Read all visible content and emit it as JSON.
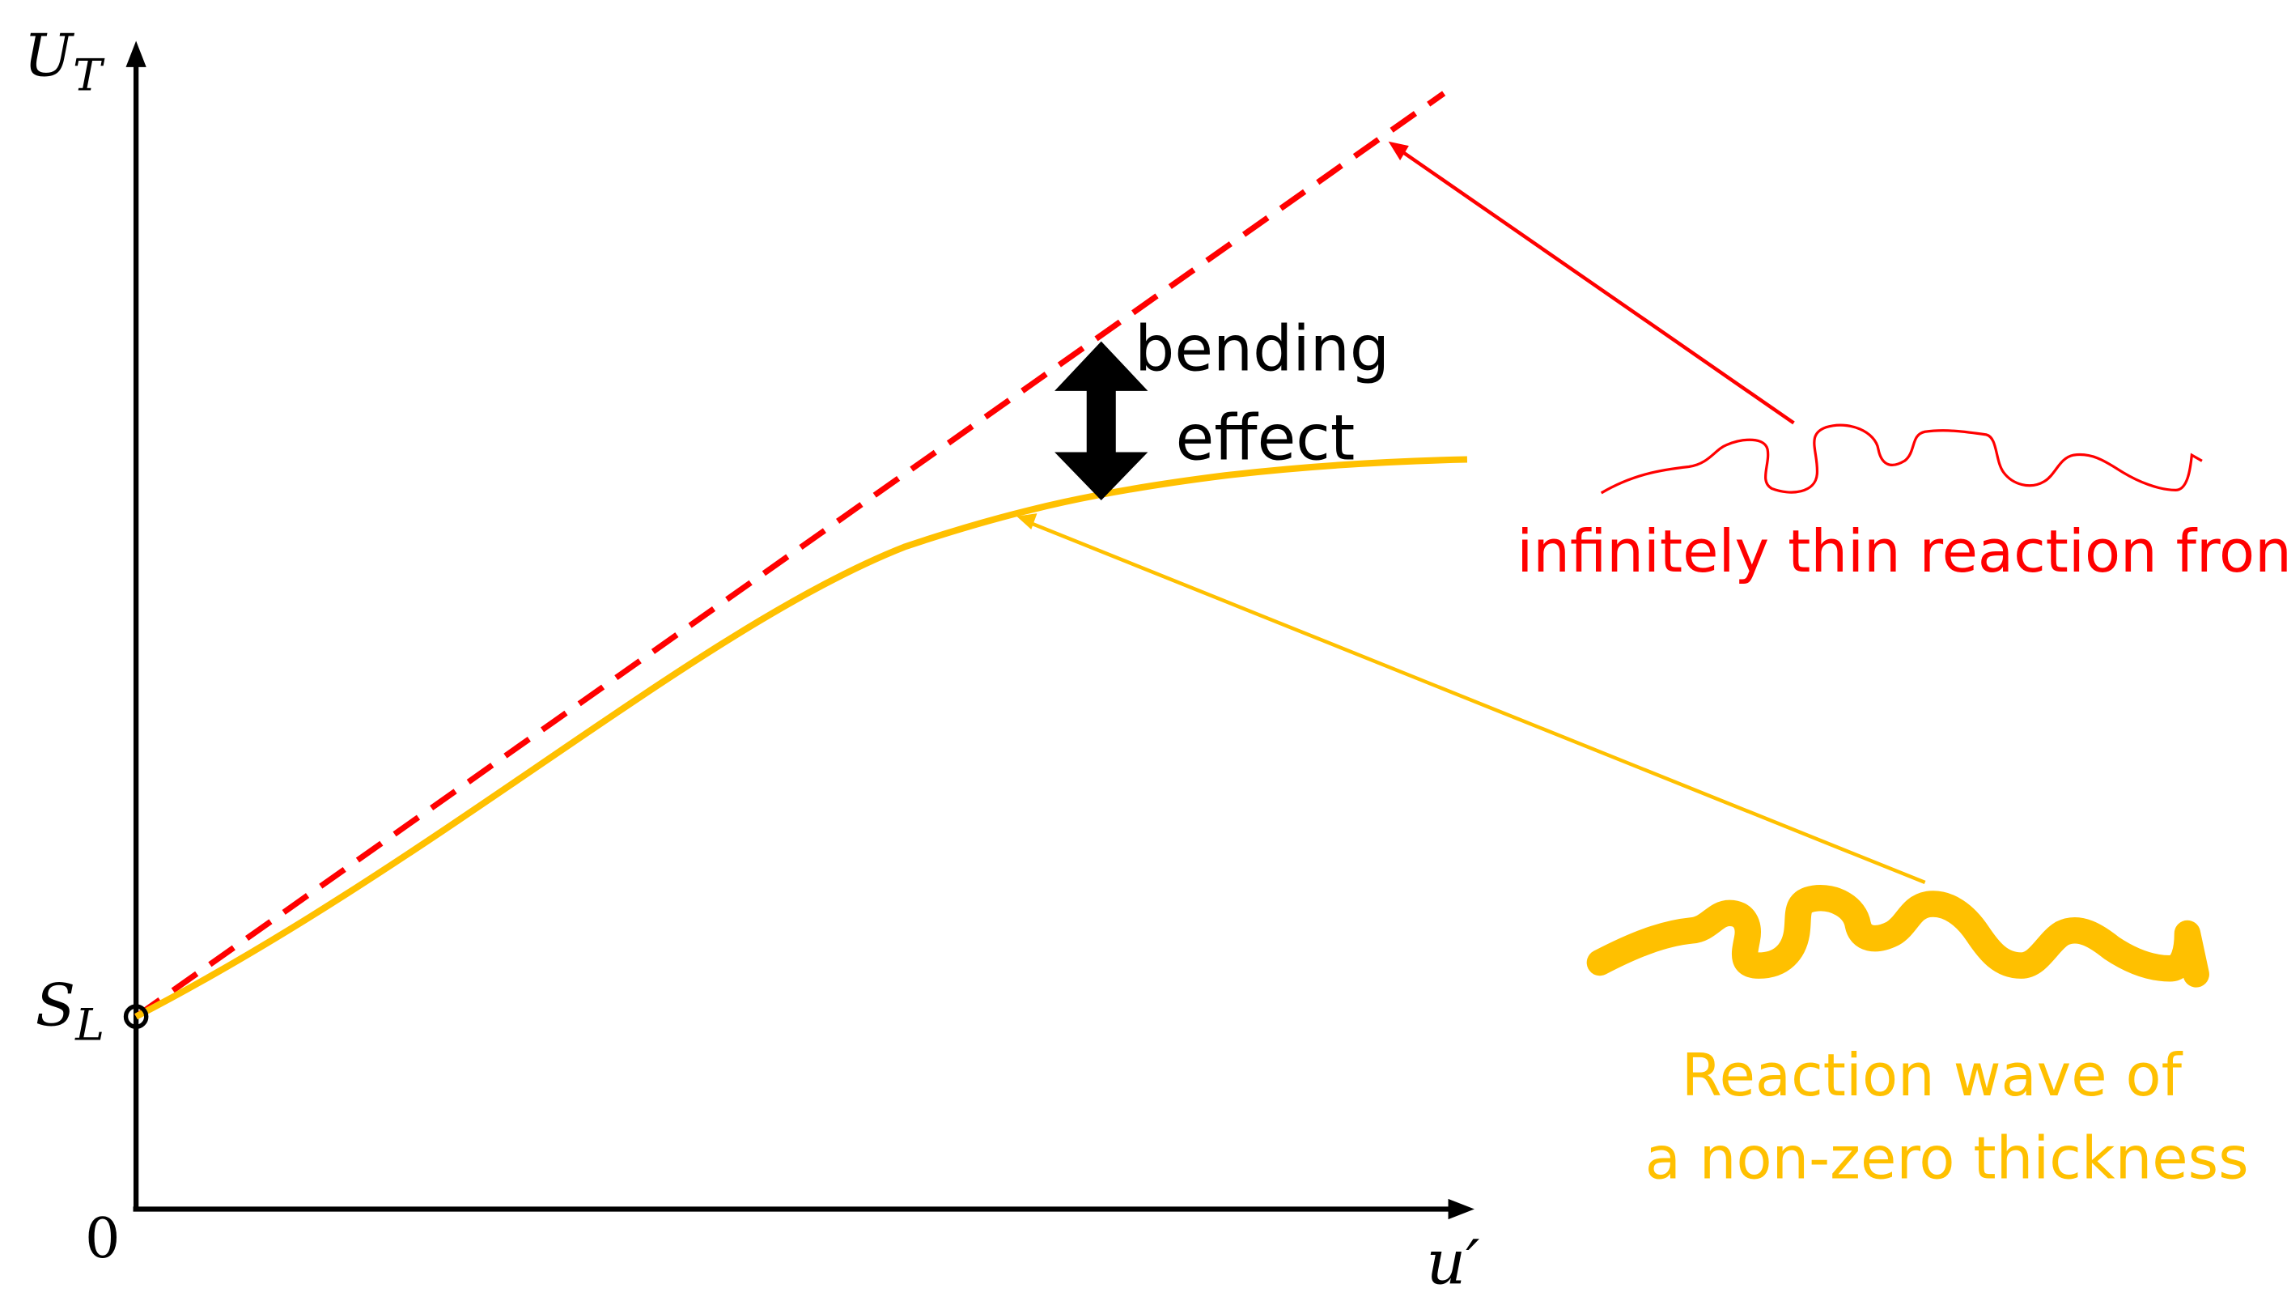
{
  "axes": {
    "y_label": "U",
    "y_label_sub": "T",
    "x_label": "u′",
    "origin_label": "0",
    "intercept_label": "S",
    "intercept_label_sub": "L"
  },
  "annotations": {
    "bending_line1": "bending",
    "bending_line2": "effect",
    "thin_front_label": "infinitely thin reaction front",
    "thick_wave_line1": "Reaction wave of",
    "thick_wave_line2": "a non-zero thickness"
  },
  "colors": {
    "thin_front": "#ff0000",
    "thick_wave": "#ffc000",
    "axes": "#000000",
    "bending_arrow": "#000000"
  }
}
